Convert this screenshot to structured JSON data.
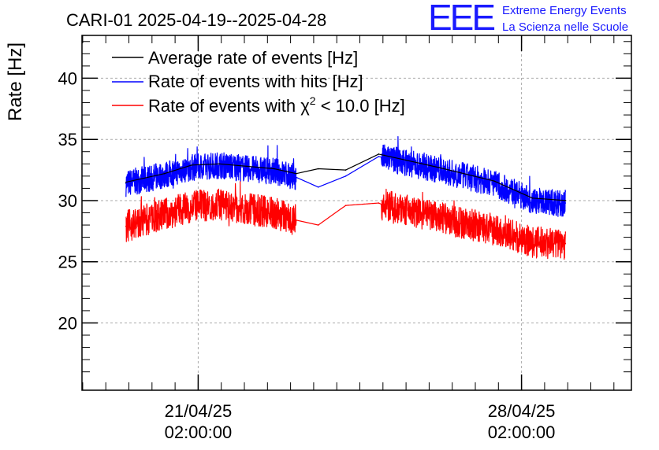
{
  "chart_data": {
    "type": "line",
    "title": "CARI-01 2025-04-19--2025-04-28",
    "xlabel": "",
    "ylabel": "Rate [Hz]",
    "ylim": [
      14.5,
      43.5
    ],
    "xlim": [
      0,
      10
    ],
    "grid": true,
    "legend_position": "top-left",
    "y_ticks": [
      20,
      25,
      30,
      35,
      40
    ],
    "y_tick_labels": [
      "20",
      "25",
      "30",
      "35",
      "40"
    ],
    "x_ticks": [
      {
        "value": 2.115,
        "label_date": "21/04/25",
        "label_time": "02:00:00"
      },
      {
        "value": 8.0,
        "label_date": "28/04/25",
        "label_time": "02:00:00"
      }
    ],
    "legend": [
      {
        "label": "Average rate of events [Hz]",
        "color": "#000000"
      },
      {
        "label": "Rate of events with hits [Hz]",
        "color": "#0000ff"
      },
      {
        "label": "Rate of events with χ² < 10.0 [Hz]",
        "color": "#ff0000",
        "label_prefix": "Rate of events with ",
        "label_chi": "χ",
        "label_sup": "2",
        "label_suffix": " < 10.0 [Hz]"
      }
    ],
    "series": [
      {
        "name": "Average rate of events [Hz]",
        "color": "#000000",
        "x": [
          0.8,
          1.5,
          2.0,
          2.5,
          3.0,
          3.5,
          3.9,
          4.3,
          4.8,
          5.4,
          5.5,
          6.5,
          7.5,
          8.2,
          8.8
        ],
        "y": [
          31.5,
          32.2,
          32.9,
          33.0,
          32.8,
          32.6,
          32.2,
          32.6,
          32.5,
          33.8,
          33.7,
          32.7,
          31.6,
          30.2,
          30.0
        ]
      },
      {
        "name": "Rate of events with hits [Hz]",
        "color": "#0000ff",
        "x": [
          0.8,
          1.5,
          2.0,
          2.5,
          3.0,
          3.5,
          3.9,
          4.3,
          4.8,
          5.4,
          5.5,
          6.5,
          7.5,
          8.2,
          8.8
        ],
        "y": [
          31.4,
          32.1,
          32.7,
          32.9,
          32.6,
          32.4,
          31.9,
          31.1,
          32.0,
          33.6,
          33.5,
          32.5,
          31.4,
          30.0,
          29.8
        ],
        "spread": 1.1
      },
      {
        "name": "Rate of events with χ² < 10.0 [Hz]",
        "color": "#ff0000",
        "x": [
          0.8,
          1.5,
          2.0,
          2.5,
          3.0,
          3.5,
          3.9,
          4.3,
          4.8,
          5.4,
          5.5,
          6.5,
          7.5,
          8.2,
          8.8
        ],
        "y": [
          27.9,
          28.9,
          29.5,
          29.7,
          29.3,
          29.0,
          28.4,
          28.0,
          29.6,
          29.8,
          29.6,
          28.6,
          27.6,
          26.6,
          26.5
        ],
        "spread": 1.3
      }
    ]
  },
  "logo": {
    "mark": "EEE",
    "line1": "Extreme Energy Events",
    "line2": "La Scienza nelle Scuole"
  }
}
